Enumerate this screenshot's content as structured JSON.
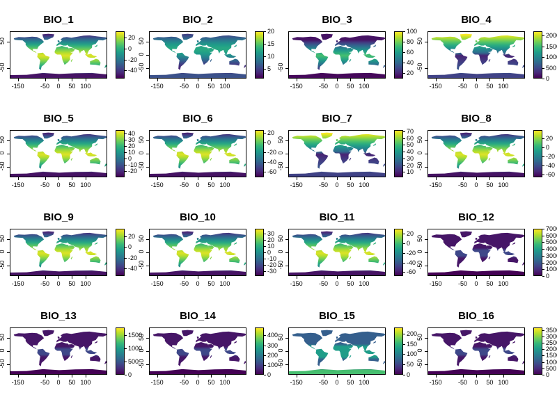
{
  "colors": {
    "viridis": [
      "#440154",
      "#482878",
      "#3e4989",
      "#31688e",
      "#26828e",
      "#1f9e89",
      "#35b779",
      "#6ece58",
      "#b5de2b",
      "#fde725"
    ],
    "frame": "#000000",
    "background": "#ffffff"
  },
  "x_ticks": [
    "-150",
    "-50",
    "0",
    "50",
    "100"
  ],
  "chart_data": [
    {
      "type": "heatmap",
      "title": "BIO_1",
      "x_ticks": [
        -150,
        -50,
        0,
        50,
        100
      ],
      "y_ticks": [
        "50",
        "-50"
      ],
      "legend_ticks": [
        "20",
        "0",
        "-20",
        "-40"
      ],
      "legend_range": [
        -55,
        32
      ],
      "ramp": "tropics_high"
    },
    {
      "type": "heatmap",
      "title": "BIO_2",
      "x_ticks": [
        -150,
        -50,
        0,
        50,
        100
      ],
      "y_ticks": [
        "50",
        "0",
        "-50"
      ],
      "legend_ticks": [
        "20",
        "15",
        "10",
        "5"
      ],
      "legend_range": [
        1,
        20
      ],
      "ramp": "mid_mixed"
    },
    {
      "type": "heatmap",
      "title": "BIO_3",
      "x_ticks": [
        -150,
        -50,
        0,
        50,
        100
      ],
      "y_ticks": [
        "-50"
      ],
      "legend_ticks": [
        "100",
        "80",
        "60",
        "40",
        "20"
      ],
      "legend_range": [
        9,
        100
      ],
      "ramp": "tropics_high_low_base"
    },
    {
      "type": "heatmap",
      "title": "BIO_4",
      "x_ticks": [
        -150,
        -50,
        0,
        50,
        100
      ],
      "y_ticks": [
        "50",
        "-50"
      ],
      "legend_ticks": [
        "2000",
        "1500",
        "1000",
        "500",
        "0"
      ],
      "legend_range": [
        0,
        2200
      ],
      "ramp": "north_high"
    },
    {
      "type": "heatmap",
      "title": "BIO_5",
      "x_ticks": [
        -150,
        -50,
        0,
        50,
        100
      ],
      "y_ticks": [
        "50",
        "0",
        "-50"
      ],
      "legend_ticks": [
        "40",
        "30",
        "20",
        "10",
        "0",
        "-10",
        "-20"
      ],
      "legend_range": [
        -30,
        45
      ],
      "ramp": "tropics_high"
    },
    {
      "type": "heatmap",
      "title": "BIO_6",
      "x_ticks": [
        -150,
        -50,
        0,
        50,
        100
      ],
      "y_ticks": [
        "50",
        "0",
        "-50"
      ],
      "legend_ticks": [
        "20",
        "0",
        "-20",
        "-40",
        "-60"
      ],
      "legend_range": [
        -72,
        25
      ],
      "ramp": "tropics_high"
    },
    {
      "type": "heatmap",
      "title": "BIO_7",
      "x_ticks": [
        -150,
        -50,
        0,
        50,
        100
      ],
      "y_ticks": [
        "50",
        "0",
        "-50"
      ],
      "legend_ticks": [
        "70",
        "60",
        "50",
        "40",
        "30",
        "20",
        "10"
      ],
      "legend_range": [
        2,
        72
      ],
      "ramp": "north_high"
    },
    {
      "type": "heatmap",
      "title": "BIO_8",
      "x_ticks": [
        -150,
        -50,
        0,
        50,
        100
      ],
      "y_ticks": [
        "50",
        "0",
        "-50"
      ],
      "legend_ticks": [
        "20",
        "0",
        "-20",
        "-40",
        "-60"
      ],
      "legend_range": [
        -66,
        38
      ],
      "ramp": "tropics_high"
    },
    {
      "type": "heatmap",
      "title": "BIO_9",
      "x_ticks": [
        -150,
        -50,
        0,
        50,
        100
      ],
      "y_ticks": [
        "50",
        "0",
        "-50"
      ],
      "legend_ticks": [
        "20",
        "0",
        "-20",
        "-40"
      ],
      "legend_range": [
        -55,
        35
      ],
      "ramp": "tropics_high"
    },
    {
      "type": "heatmap",
      "title": "BIO_10",
      "x_ticks": [
        -150,
        -50,
        0,
        50,
        100
      ],
      "y_ticks": [
        "50",
        "0",
        "-50"
      ],
      "legend_ticks": [
        "30",
        "20",
        "10",
        "0",
        "-10",
        "-20",
        "-30"
      ],
      "legend_range": [
        -38,
        38
      ],
      "ramp": "tropics_high"
    },
    {
      "type": "heatmap",
      "title": "BIO_11",
      "x_ticks": [
        -150,
        -50,
        0,
        50,
        100
      ],
      "y_ticks": [
        "50",
        "0",
        "-50"
      ],
      "legend_ticks": [
        "20",
        "0",
        "-20",
        "-40",
        "-60"
      ],
      "legend_range": [
        -68,
        30
      ],
      "ramp": "tropics_high"
    },
    {
      "type": "heatmap",
      "title": "BIO_12",
      "x_ticks": [
        -150,
        -50,
        0,
        50,
        100
      ],
      "y_ticks": [
        "50",
        "0",
        "-50"
      ],
      "legend_ticks": [
        "7000",
        "6000",
        "5000",
        "4000",
        "3000",
        "2000",
        "1000",
        "0"
      ],
      "legend_range": [
        0,
        7000
      ],
      "ramp": "low_dark"
    },
    {
      "type": "heatmap",
      "title": "BIO_13",
      "x_ticks": [
        -150,
        -50,
        0,
        50,
        100
      ],
      "y_ticks": [
        "50",
        "0",
        "-50"
      ],
      "legend_ticks": [
        "1500",
        "1000",
        "500",
        "0"
      ],
      "legend_range": [
        0,
        1800
      ],
      "ramp": "low_dark"
    },
    {
      "type": "heatmap",
      "title": "BIO_14",
      "x_ticks": [
        -150,
        -50,
        0,
        50,
        100
      ],
      "y_ticks": [
        "50",
        "0",
        "-50"
      ],
      "legend_ticks": [
        "400",
        "300",
        "200",
        "100",
        "0"
      ],
      "legend_range": [
        0,
        480
      ],
      "ramp": "low_dark"
    },
    {
      "type": "heatmap",
      "title": "BIO_15",
      "x_ticks": [
        -150,
        -50,
        0,
        50,
        100
      ],
      "y_ticks": [
        "50",
        "0",
        "-50"
      ],
      "legend_ticks": [
        "200",
        "150",
        "100",
        "50",
        "0"
      ],
      "legend_range": [
        0,
        230
      ],
      "ramp": "seasonal"
    },
    {
      "type": "heatmap",
      "title": "BIO_16",
      "x_ticks": [
        -150,
        -50,
        0,
        50,
        100
      ],
      "y_ticks": [
        "50",
        "0",
        "-50"
      ],
      "legend_ticks": [
        "3500",
        "3000",
        "2500",
        "2000",
        "1500",
        "1000",
        "500",
        "0"
      ],
      "legend_range": [
        0,
        3700
      ],
      "ramp": "low_dark"
    }
  ]
}
